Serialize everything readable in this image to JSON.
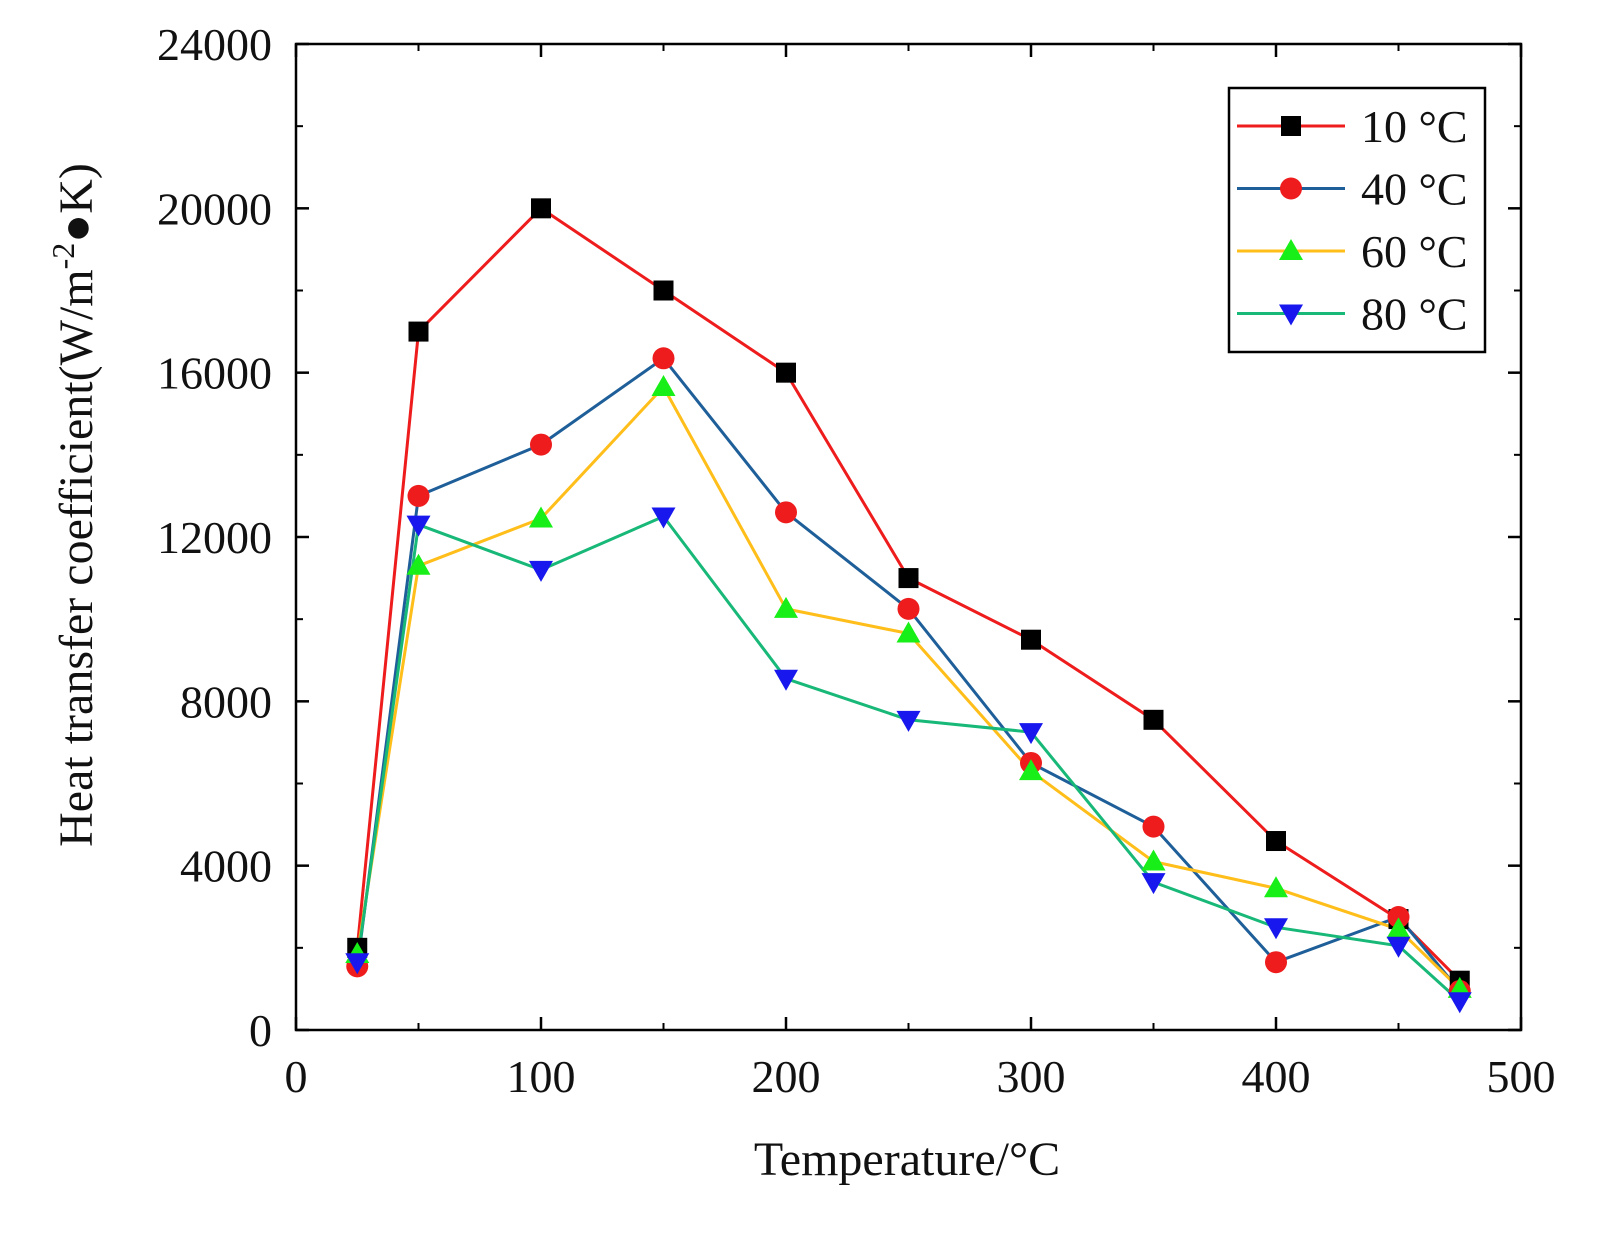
{
  "chart_data": {
    "type": "line",
    "title": "",
    "xlabel": "Temperature/°C",
    "ylabel_main": "Heat transfer coefficient(W/m",
    "ylabel_sup": "-2",
    "ylabel_tail": "●K)",
    "xlim": [
      0,
      500
    ],
    "ylim": [
      0,
      24000
    ],
    "x_ticks": [
      0,
      100,
      200,
      300,
      400,
      500
    ],
    "x_tick_labels": [
      "0",
      "100",
      "200",
      "300",
      "400",
      "500"
    ],
    "y_ticks": [
      0,
      4000,
      8000,
      12000,
      16000,
      20000,
      24000
    ],
    "y_tick_labels": [
      "0",
      "4000",
      "8000",
      "12000",
      "16000",
      "20000",
      "24000"
    ],
    "x_minor_step": 50,
    "y_minor_step": 2000,
    "grid": false,
    "legend_position": "top-right",
    "x": [
      25,
      50,
      100,
      150,
      200,
      250,
      300,
      350,
      400,
      450,
      475
    ],
    "series": [
      {
        "name": "10 °C",
        "line_color": "#ee1c1c",
        "marker": "square",
        "marker_color": "#000000",
        "values": [
          2000,
          17000,
          20000,
          18000,
          16000,
          11000,
          9500,
          7550,
          4600,
          2700,
          1200
        ]
      },
      {
        "name": "40 °C",
        "line_color": "#1f5f99",
        "marker": "circle",
        "marker_color": "#ee1c1c",
        "values": [
          1550,
          13000,
          14250,
          16350,
          12600,
          10250,
          6500,
          4950,
          1650,
          2750,
          950
        ]
      },
      {
        "name": "60 °C",
        "line_color": "#ffbe1a",
        "marker": "triangle-up",
        "marker_color": "#18ee18",
        "values": [
          1850,
          11300,
          12450,
          15650,
          10250,
          9650,
          6300,
          4100,
          3450,
          2450,
          1000
        ]
      },
      {
        "name": "80 °C",
        "line_color": "#18b878",
        "marker": "triangle-down",
        "marker_color": "#1818ee",
        "values": [
          1650,
          12300,
          11200,
          12500,
          8550,
          7550,
          7250,
          3600,
          2500,
          2050,
          700
        ]
      }
    ]
  }
}
